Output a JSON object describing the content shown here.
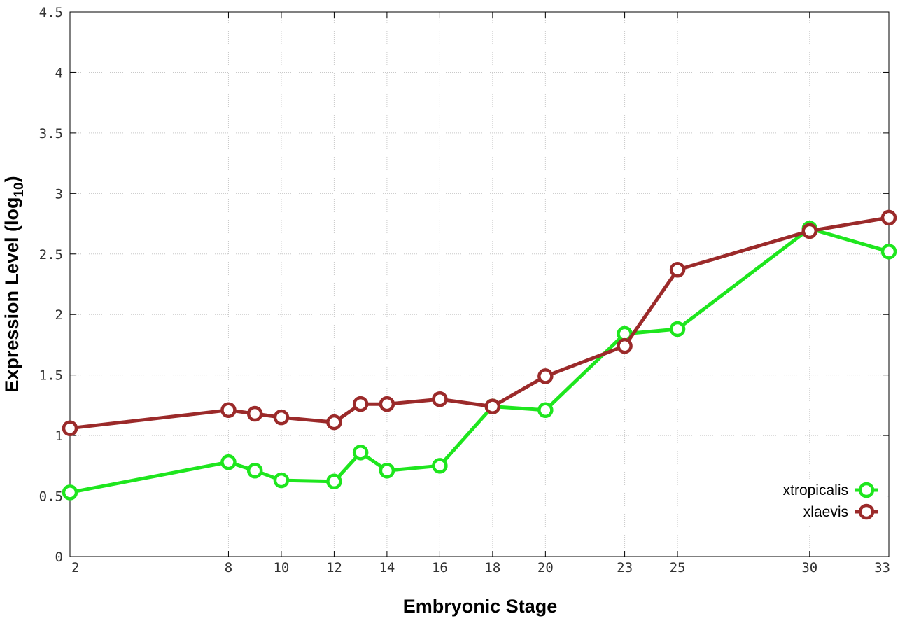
{
  "chart_data": {
    "type": "line",
    "title": "",
    "xlabel": "Embryonic Stage",
    "ylabel": {
      "main": "Expression Level (log",
      "sub": "10",
      "tail": ")"
    },
    "xlim": [
      2,
      33
    ],
    "ylim": [
      0,
      4.5
    ],
    "xticks": [
      2,
      8,
      10,
      12,
      14,
      16,
      18,
      20,
      23,
      25,
      30,
      33
    ],
    "yticks": [
      {
        "value": 0,
        "label": "0"
      },
      {
        "value": 0.5,
        "label": "0.5"
      },
      {
        "value": 1,
        "label": "1"
      },
      {
        "value": 1.5,
        "label": "1.5"
      },
      {
        "value": 2,
        "label": "2"
      },
      {
        "value": 2.5,
        "label": "2.5"
      },
      {
        "value": 3,
        "label": "3"
      },
      {
        "value": 3.5,
        "label": "3.5"
      },
      {
        "value": 4,
        "label": "4"
      },
      {
        "value": 4.5,
        "label": "4.5"
      }
    ],
    "grid": true,
    "legend_position": "bottom-right",
    "x": [
      2,
      8,
      9,
      10,
      12,
      13,
      14,
      16,
      18,
      20,
      23,
      25,
      30,
      33
    ],
    "series": [
      {
        "name": "xtropicalis",
        "color": "#1ee61e",
        "values": [
          0.53,
          0.78,
          0.71,
          0.63,
          0.62,
          0.86,
          0.71,
          0.75,
          1.24,
          1.21,
          1.84,
          1.88,
          2.71,
          2.52
        ]
      },
      {
        "name": "xlaevis",
        "color": "#9b2a2a",
        "values": [
          1.06,
          1.21,
          1.18,
          1.15,
          1.11,
          1.26,
          1.26,
          1.3,
          1.24,
          1.49,
          1.74,
          2.37,
          2.69,
          2.8
        ]
      }
    ]
  }
}
